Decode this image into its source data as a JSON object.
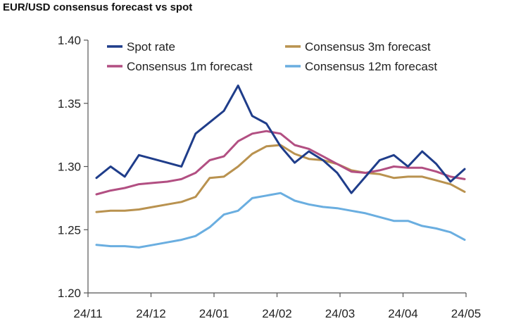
{
  "chart_data": {
    "type": "line",
    "title": "EUR/USD consensus forecast vs spot",
    "xlabel": "",
    "ylabel": "",
    "ylim": [
      1.2,
      1.4
    ],
    "yticks": [
      "1.40",
      "1.35",
      "1.30",
      "1.25",
      "1.20"
    ],
    "xticks": [
      "24/11",
      "24/12",
      "24/01",
      "24/02",
      "24/03",
      "24/04",
      "24/05"
    ],
    "grid": false,
    "legend": "top",
    "series": [
      {
        "name": "Spot rate",
        "color": "#1f3d8a",
        "values": [
          1.291,
          1.3,
          1.292,
          1.309,
          1.306,
          1.303,
          1.3,
          1.326,
          1.335,
          1.344,
          1.364,
          1.34,
          1.334,
          1.316,
          1.303,
          1.312,
          1.305,
          1.295,
          1.279,
          1.292,
          1.305,
          1.309,
          1.3,
          1.312,
          1.302,
          1.288,
          1.298
        ]
      },
      {
        "name": "Consensus 3m forecast",
        "color": "#b9924f",
        "values": [
          1.264,
          1.265,
          1.265,
          1.266,
          1.268,
          1.27,
          1.272,
          1.276,
          1.291,
          1.292,
          1.3,
          1.31,
          1.316,
          1.317,
          1.31,
          1.306,
          1.305,
          1.302,
          1.297,
          1.295,
          1.294,
          1.291,
          1.292,
          1.292,
          1.289,
          1.286,
          1.28
        ]
      },
      {
        "name": "Consensus 1m forecast",
        "color": "#b24f82",
        "values": [
          1.278,
          1.281,
          1.283,
          1.286,
          1.287,
          1.288,
          1.29,
          1.295,
          1.305,
          1.308,
          1.32,
          1.326,
          1.328,
          1.326,
          1.317,
          1.314,
          1.308,
          1.302,
          1.296,
          1.295,
          1.297,
          1.3,
          1.299,
          1.299,
          1.296,
          1.292,
          1.29
        ]
      },
      {
        "name": "Consensus 12m forecast",
        "color": "#6aaee0",
        "values": [
          1.238,
          1.237,
          1.237,
          1.236,
          1.238,
          1.24,
          1.242,
          1.245,
          1.252,
          1.262,
          1.265,
          1.275,
          1.277,
          1.279,
          1.273,
          1.27,
          1.268,
          1.267,
          1.265,
          1.263,
          1.26,
          1.257,
          1.257,
          1.253,
          1.251,
          1.248,
          1.242
        ]
      }
    ]
  }
}
